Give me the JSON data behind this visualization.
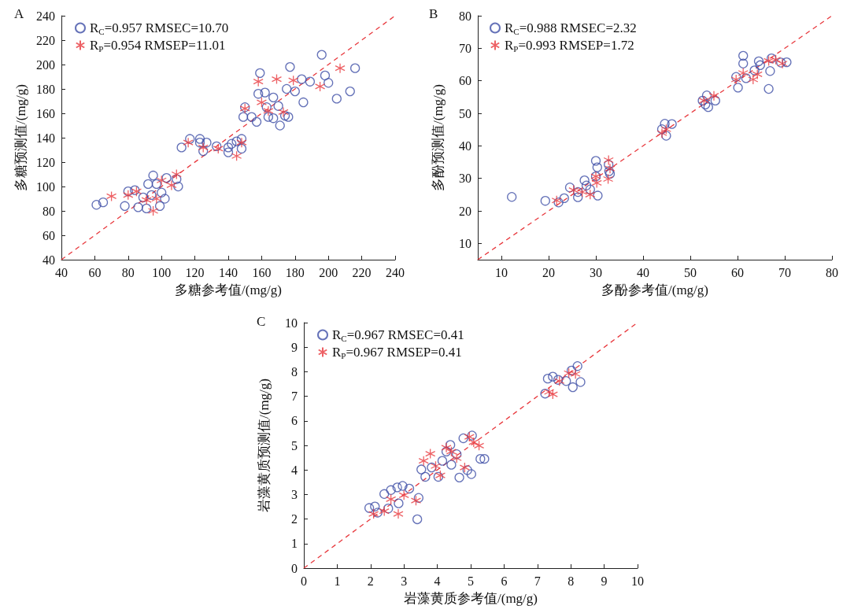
{
  "chart_data": [
    {
      "type": "scatter",
      "title": "A",
      "xlabel": "多糖参考值/(mg/g)",
      "ylabel": "多糖预测值/(mg/g)",
      "xlim": [
        40,
        240
      ],
      "ylim": [
        40,
        240
      ],
      "xticks": [
        40,
        60,
        80,
        100,
        120,
        140,
        160,
        180,
        200,
        220,
        240
      ],
      "yticks": [
        40,
        60,
        80,
        100,
        120,
        140,
        160,
        180,
        200,
        220,
        240
      ],
      "grid": false,
      "legend": "top left",
      "series": [
        {
          "name": "R$_{C}$=0.957 RMSEC=10.70",
          "color": "#3f4fa6",
          "marker": "circle",
          "x": [
            61,
            65,
            78,
            80,
            84,
            86,
            91,
            95,
            99,
            102,
            103,
            109,
            110,
            89,
            94,
            97,
            100,
            92,
            112,
            117,
            123,
            123,
            127,
            125,
            133,
            140,
            140,
            142,
            145,
            148,
            148,
            149,
            150,
            154,
            157,
            158,
            159,
            162,
            164,
            167,
            167,
            170,
            171,
            175,
            176,
            177,
            180,
            184,
            185,
            189,
            196,
            198,
            200,
            205,
            213,
            216,
            163,
            174
          ],
          "values": [
            85,
            87,
            84,
            96,
            97,
            83,
            82,
            109,
            84,
            90,
            107,
            106,
            100,
            91,
            93,
            102,
            95,
            102,
            132,
            139,
            139,
            136,
            136,
            129,
            133,
            132,
            128,
            135,
            137,
            139,
            131,
            157,
            165,
            157,
            153,
            176,
            193,
            177,
            157,
            156,
            173,
            166,
            150,
            180,
            157,
            198,
            178,
            188,
            169,
            186,
            208,
            191,
            185,
            172,
            178,
            197,
            165,
            158
          ]
        },
        {
          "name": "R$_{P}$=0.954 RMSEP=11.01",
          "color": "#e8383d",
          "marker": "cross",
          "x": [
            70,
            80,
            85,
            91,
            95,
            97,
            100,
            106,
            109,
            116,
            125,
            134,
            145,
            148,
            150,
            158,
            160,
            164,
            169,
            173,
            179,
            195,
            207
          ],
          "values": [
            92,
            93,
            96,
            89,
            80,
            90,
            105,
            101,
            110,
            136,
            132,
            131,
            125,
            136,
            164,
            186,
            169,
            162,
            188,
            161,
            187,
            182,
            197
          ]
        },
        {
          "type": "line",
          "color": "#e8383d",
          "line_style": "dashed",
          "marker": "none",
          "x": [
            40,
            240
          ],
          "values": [
            40,
            240
          ]
        }
      ]
    },
    {
      "type": "scatter",
      "title": "B",
      "xlabel": "多酚参考值/(mg/g)",
      "ylabel": "多酚预测值/(mg/g)",
      "xlim": [
        5,
        80
      ],
      "ylim": [
        5,
        80
      ],
      "xticks": [
        10,
        20,
        30,
        40,
        50,
        60,
        70,
        80
      ],
      "yticks": [
        10,
        20,
        30,
        40,
        50,
        60,
        70,
        80
      ],
      "grid": false,
      "legend": "top left",
      "series": [
        {
          "name": "R$_{C}$=0.988 RMSEC=2.32",
          "color": "#3f4fa6",
          "marker": "circle",
          "x": [
            12.2,
            19.3,
            22.1,
            23.3,
            24.5,
            26.2,
            27.6,
            28.8,
            30.0,
            30.3,
            30.4,
            30.0,
            32.7,
            32.8,
            33.0,
            44.6,
            46.1,
            44.9,
            44.0,
            52.6,
            53.5,
            53.8,
            55.3,
            59.7,
            60.1,
            61.2,
            61.2,
            61.8,
            64.5,
            64.8,
            63.6,
            66.6,
            66.9,
            67.2,
            70.4,
            69.2,
            26.2,
            28.0,
            53.2
          ],
          "values": [
            24.3,
            23.1,
            22.6,
            23.9,
            27.2,
            24.2,
            29.4,
            26.6,
            35.4,
            33.4,
            24.7,
            30.6,
            34.2,
            32.2,
            31.4,
            46.8,
            46.7,
            43.1,
            45.1,
            53.9,
            55.5,
            51.9,
            53.9,
            61.2,
            57.9,
            67.7,
            65.3,
            60.8,
            66.0,
            64.8,
            63.2,
            57.5,
            63.0,
            66.9,
            65.7,
            65.6,
            25.8,
            27.8,
            52.7
          ]
        },
        {
          "name": "R$_{P}$=0.993 RMSEP=1.72",
          "color": "#e8383d",
          "marker": "cross",
          "x": [
            21.7,
            25.3,
            27.1,
            28.8,
            30.0,
            30.2,
            32.7,
            32.6,
            33.0,
            44.0,
            44.9,
            52.9,
            55.0,
            59.7,
            61.2,
            63.3,
            64.2,
            66.6,
            68.1,
            69.5
          ],
          "values": [
            23.2,
            26.4,
            25.8,
            25.0,
            30.6,
            28.6,
            35.6,
            29.8,
            33.0,
            43.9,
            45.1,
            53.9,
            55.4,
            60.4,
            62.4,
            60.4,
            62.0,
            66.1,
            66.5,
            65.3
          ]
        },
        {
          "type": "line",
          "color": "#e8383d",
          "line_style": "dashed",
          "marker": "none",
          "x": [
            5,
            80
          ],
          "values": [
            5,
            80
          ]
        }
      ]
    },
    {
      "type": "scatter",
      "title": "C",
      "xlabel": "岩藻黄质参考值/(mg/g)",
      "ylabel": "岩藻黄质预测值/(mg/g)",
      "xlim": [
        0,
        10
      ],
      "ylim": [
        0,
        10
      ],
      "xticks": [
        0,
        1,
        2,
        3,
        4,
        5,
        6,
        7,
        8,
        9,
        10
      ],
      "yticks": [
        0,
        1,
        2,
        3,
        4,
        5,
        6,
        7,
        8,
        9,
        10
      ],
      "grid": false,
      "legend": "top left",
      "series": [
        {
          "name": "R$_{C}$=0.967 RMSEC=0.41",
          "color": "#3f4fa6",
          "marker": "circle",
          "x": [
            1.96,
            2.13,
            2.21,
            2.41,
            2.61,
            2.53,
            2.8,
            2.96,
            3.16,
            3.44,
            3.4,
            2.84,
            3.52,
            3.64,
            3.83,
            4.03,
            4.15,
            4.39,
            4.42,
            4.66,
            4.78,
            4.9,
            5.02,
            5.04,
            5.29,
            5.41,
            4.58,
            4.27,
            7.23,
            7.31,
            7.46,
            7.62,
            8.06,
            8.29,
            8.2,
            8.02,
            7.86
          ],
          "values": [
            2.45,
            2.51,
            2.26,
            3.02,
            3.18,
            2.43,
            3.29,
            3.35,
            3.24,
            2.86,
            1.99,
            2.64,
            4.02,
            3.72,
            4.1,
            3.72,
            4.37,
            5.02,
            4.21,
            3.69,
            5.29,
            3.99,
            3.83,
            5.4,
            4.45,
            4.45,
            4.64,
            4.75,
            7.11,
            7.72,
            7.8,
            7.67,
            7.37,
            7.58,
            8.23,
            8.05,
            7.62
          ]
        },
        {
          "name": "R$_{P}$=0.967 RMSEP=0.41",
          "color": "#e8383d",
          "marker": "cross",
          "x": [
            2.09,
            2.41,
            2.61,
            2.83,
            3.0,
            3.36,
            3.59,
            3.79,
            3.95,
            4.09,
            4.27,
            4.42,
            4.58,
            4.82,
            4.96,
            5.09,
            5.25,
            7.35,
            7.46,
            7.66,
            7.94,
            8.14
          ],
          "values": [
            2.21,
            2.32,
            2.81,
            2.21,
            2.97,
            2.75,
            4.37,
            4.66,
            4.16,
            3.78,
            4.91,
            4.75,
            4.48,
            4.1,
            5.35,
            5.13,
            4.99,
            7.18,
            7.08,
            7.62,
            7.94,
            7.91
          ]
        },
        {
          "type": "line",
          "color": "#e8383d",
          "line_style": "dashed",
          "marker": "none",
          "x": [
            0,
            10
          ],
          "values": [
            0,
            10
          ]
        }
      ]
    }
  ]
}
